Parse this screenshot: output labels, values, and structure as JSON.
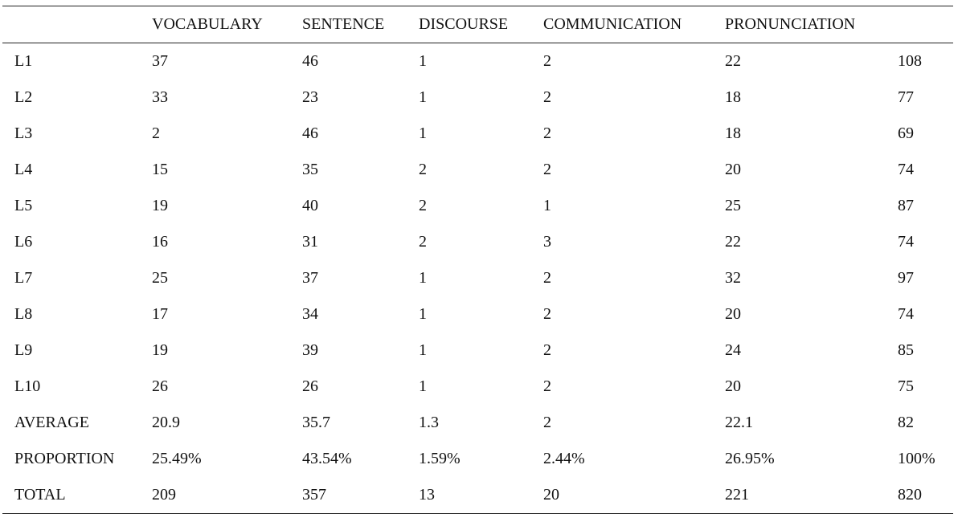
{
  "table": {
    "headers": [
      "",
      "VOCABULARY",
      "SENTENCE",
      "DISCOURSE",
      "COMMUNICATION",
      "PRONUNCIATION",
      ""
    ],
    "rows": [
      [
        "L1",
        "37",
        "46",
        "1",
        "2",
        "22",
        "108"
      ],
      [
        "L2",
        "33",
        "23",
        "1",
        "2",
        "18",
        "77"
      ],
      [
        "L3",
        "2",
        "46",
        "1",
        "2",
        "18",
        "69"
      ],
      [
        "L4",
        "15",
        "35",
        "2",
        "2",
        "20",
        "74"
      ],
      [
        "L5",
        "19",
        "40",
        "2",
        "1",
        "25",
        "87"
      ],
      [
        "L6",
        "16",
        "31",
        "2",
        "3",
        "22",
        "74"
      ],
      [
        "L7",
        "25",
        "37",
        "1",
        "2",
        "32",
        "97"
      ],
      [
        "L8",
        "17",
        "34",
        "1",
        "2",
        "20",
        "74"
      ],
      [
        "L9",
        "19",
        "39",
        "1",
        "2",
        "24",
        "85"
      ],
      [
        "L10",
        "26",
        "26",
        "1",
        "2",
        "20",
        "75"
      ],
      [
        "AVERAGE",
        "20.9",
        "35.7",
        "1.3",
        "2",
        "22.1",
        "82"
      ],
      [
        "PROPORTION",
        "25.49%",
        "43.54%",
        "1.59%",
        "2.44%",
        "26.95%",
        "100%"
      ],
      [
        "TOTAL",
        "209",
        "357",
        "13",
        "20",
        "221",
        "820"
      ]
    ]
  }
}
